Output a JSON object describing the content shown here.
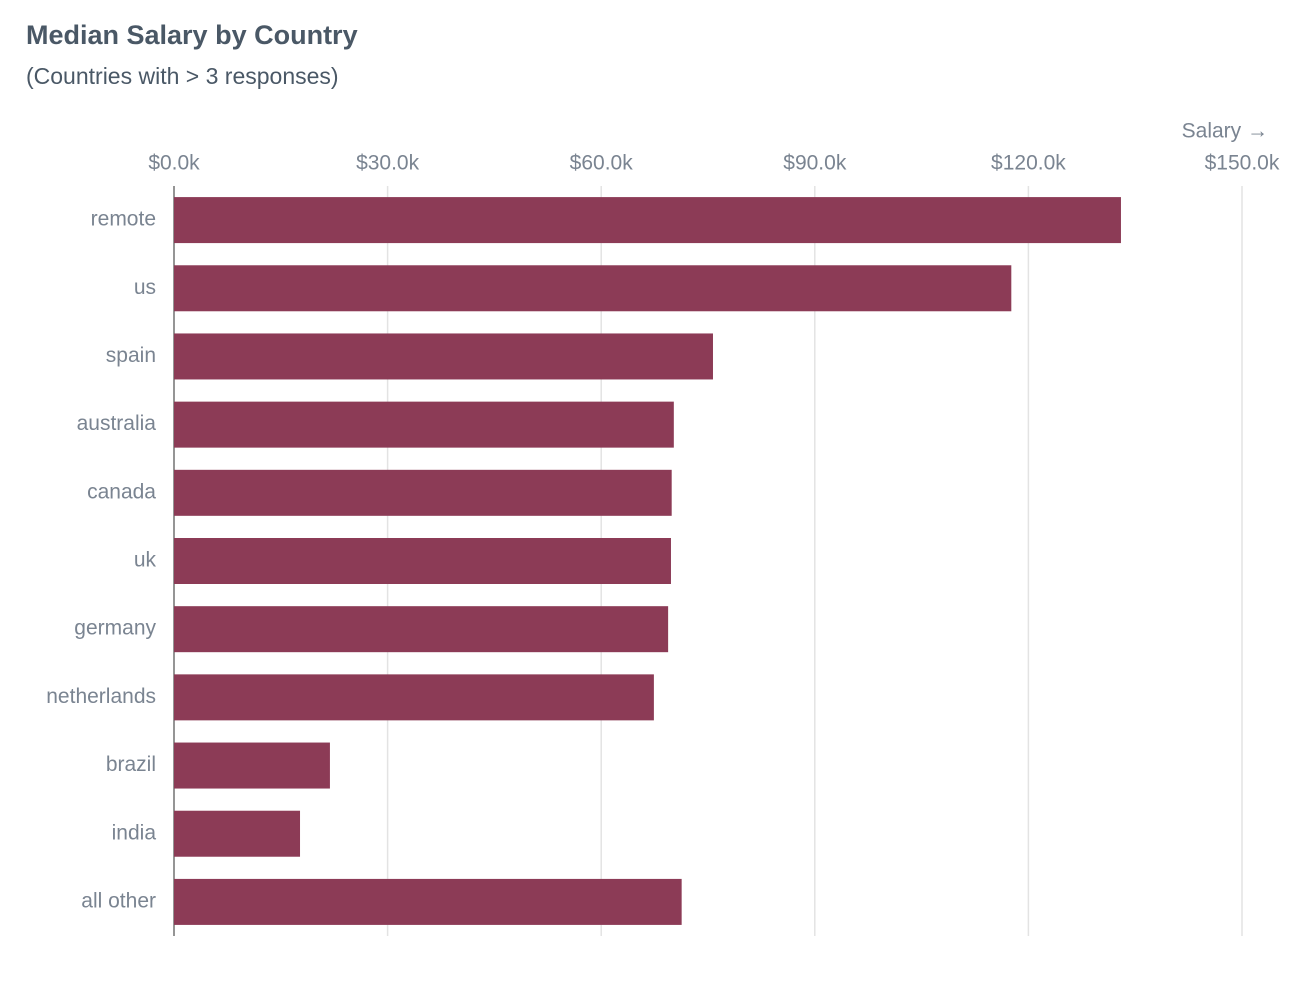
{
  "chart_data": {
    "type": "bar",
    "orientation": "horizontal",
    "title": "Median Salary by Country",
    "subtitle": "(Countries with > 3 responses)",
    "x_label": "Salary →",
    "categories": [
      "remote",
      "us",
      "spain",
      "australia",
      "canada",
      "uk",
      "germany",
      "netherlands",
      "brazil",
      "india",
      "all other"
    ],
    "values": [
      133000,
      117600,
      75700,
      70200,
      69900,
      69800,
      69400,
      67400,
      21900,
      17700,
      71300
    ],
    "color": "#8c3b56",
    "xlim": [
      0,
      150000
    ],
    "xticks": [
      {
        "value": 0,
        "label": "$0.0k"
      },
      {
        "value": 30000,
        "label": "$30.0k"
      },
      {
        "value": 60000,
        "label": "$60.0k"
      },
      {
        "value": 90000,
        "label": "$90.0k"
      },
      {
        "value": 120000,
        "label": "$120.0k"
      },
      {
        "value": 150000,
        "label": "$150.0k"
      }
    ],
    "grid": true
  }
}
